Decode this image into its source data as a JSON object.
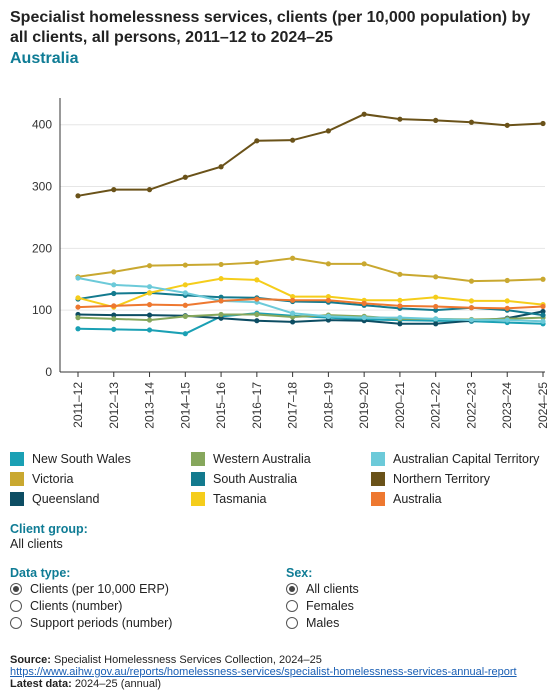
{
  "header": {
    "title": "Specialist homelessness services, clients (per 10,000 population) by all clients, all persons, 2011–12 to 2024–25",
    "subtitle": "Australia"
  },
  "chart_data": {
    "type": "line",
    "x": [
      "2011–12",
      "2012–13",
      "2013–14",
      "2014–15",
      "2015–16",
      "2016–17",
      "2017–18",
      "2018–19",
      "2019–20",
      "2020–21",
      "2021–22",
      "2022–23",
      "2023–24",
      "2024–25"
    ],
    "ylim": [
      0,
      440
    ],
    "yticks": [
      0,
      100,
      200,
      300,
      400
    ],
    "grid": true,
    "legend_position": "bottom",
    "series": [
      {
        "name": "New South Wales",
        "color": "#1aa0b4",
        "values": [
          70,
          69,
          68,
          62,
          90,
          95,
          91,
          88,
          85,
          84,
          83,
          82,
          80,
          78
        ]
      },
      {
        "name": "Victoria",
        "color": "#c9a830",
        "values": [
          154,
          162,
          172,
          173,
          174,
          177,
          184,
          175,
          175,
          158,
          154,
          147,
          148,
          150
        ]
      },
      {
        "name": "Queensland",
        "color": "#0d4d63",
        "values": [
          93,
          92,
          92,
          91,
          87,
          83,
          81,
          84,
          83,
          78,
          78,
          83,
          87,
          98
        ]
      },
      {
        "name": "Western Australia",
        "color": "#86a75c",
        "values": [
          88,
          86,
          84,
          90,
          93,
          93,
          89,
          92,
          90,
          86,
          86,
          85,
          86,
          88
        ]
      },
      {
        "name": "South Australia",
        "color": "#137a8e",
        "values": [
          118,
          127,
          128,
          124,
          121,
          120,
          114,
          113,
          108,
          103,
          100,
          104,
          100,
          92
        ]
      },
      {
        "name": "Tasmania",
        "color": "#f5cd1b",
        "values": [
          120,
          105,
          128,
          141,
          151,
          149,
          122,
          122,
          116,
          116,
          121,
          115,
          115,
          109
        ]
      },
      {
        "name": "Australian Capital Territory",
        "color": "#6ccad9",
        "values": [
          152,
          141,
          138,
          128,
          115,
          113,
          95,
          90,
          88,
          88,
          86,
          84,
          84,
          82
        ]
      },
      {
        "name": "Northern Territory",
        "color": "#6a5219",
        "values": [
          285,
          295,
          295,
          315,
          332,
          374,
          375,
          390,
          417,
          409,
          407,
          404,
          399,
          402
        ]
      },
      {
        "name": "Australia",
        "color": "#ee7830",
        "values": [
          105,
          107,
          109,
          108,
          115,
          118,
          116,
          116,
          111,
          107,
          106,
          104,
          103,
          106
        ]
      }
    ]
  },
  "legend_order": [
    0,
    3,
    6,
    1,
    4,
    7,
    2,
    5,
    8
  ],
  "client_group": {
    "label": "Client group:",
    "value": "All clients"
  },
  "data_type": {
    "label": "Data type:",
    "options": [
      "Clients (per 10,000 ERP)",
      "Clients (number)",
      "Support periods (number)"
    ],
    "selected": 0
  },
  "sex": {
    "label": "Sex:",
    "options": [
      "All clients",
      "Females",
      "Males"
    ],
    "selected": 0
  },
  "footer": {
    "source_label": "Source:",
    "source_text": "Specialist Homelessness Services Collection, 2024–25",
    "link": "https://www.aihw.gov.au/reports/homelessness-services/specialist-homelessness-services-annual-report",
    "latest_label": "Latest data:",
    "latest_text": "2024–25 (annual)"
  }
}
